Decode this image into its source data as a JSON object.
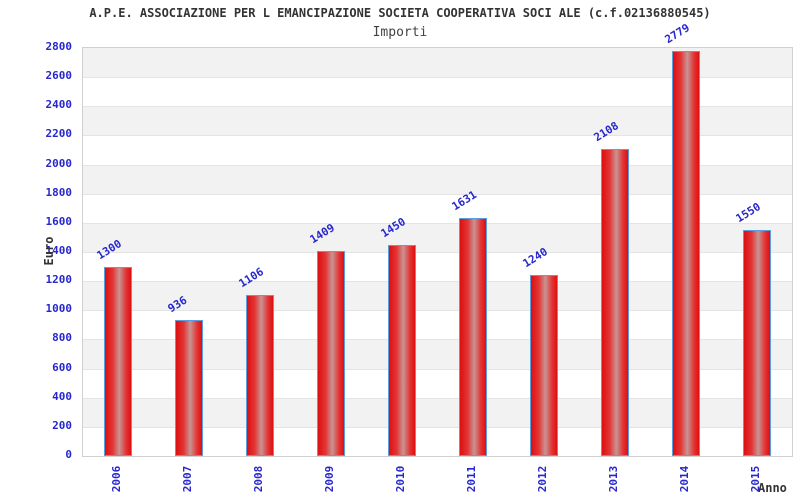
{
  "header": {
    "title": "A.P.E. ASSOCIAZIONE PER L EMANCIPAZIONE SOCIETA COOPERATIVA SOCI ALE (c.f.02136880545)",
    "subtitle": "Importi"
  },
  "chart_data": {
    "type": "bar",
    "title": "A.P.E. ASSOCIAZIONE PER L EMANCIPAZIONE SOCIETA COOPERATIVA SOCI ALE (c.f.02136880545)",
    "subtitle": "Importi",
    "categories": [
      "2006",
      "2007",
      "2008",
      "2009",
      "2010",
      "2011",
      "2012",
      "2013",
      "2014",
      "2015"
    ],
    "values": [
      1300,
      936,
      1106,
      1409,
      1450,
      1631,
      1240,
      2108,
      2779,
      1550
    ],
    "xlabel": "Anno",
    "ylabel": "Euro",
    "ylim": [
      0,
      2800
    ],
    "ytick_step": 200,
    "grid": "horizontal-bands-alternating",
    "legend": "none",
    "colors": {
      "bar_edge_red": "#dd0f0f",
      "bar_center_highlight": "#c89494",
      "bar_border_blue": "#5b9ee0",
      "tick_and_value_text": "#2727cd",
      "title_text": "#333333",
      "band_gray": "#f2f2f2",
      "band_white": "#ffffff",
      "grid_line": "#e4e4e4",
      "plot_border": "#d0d0d0"
    }
  }
}
